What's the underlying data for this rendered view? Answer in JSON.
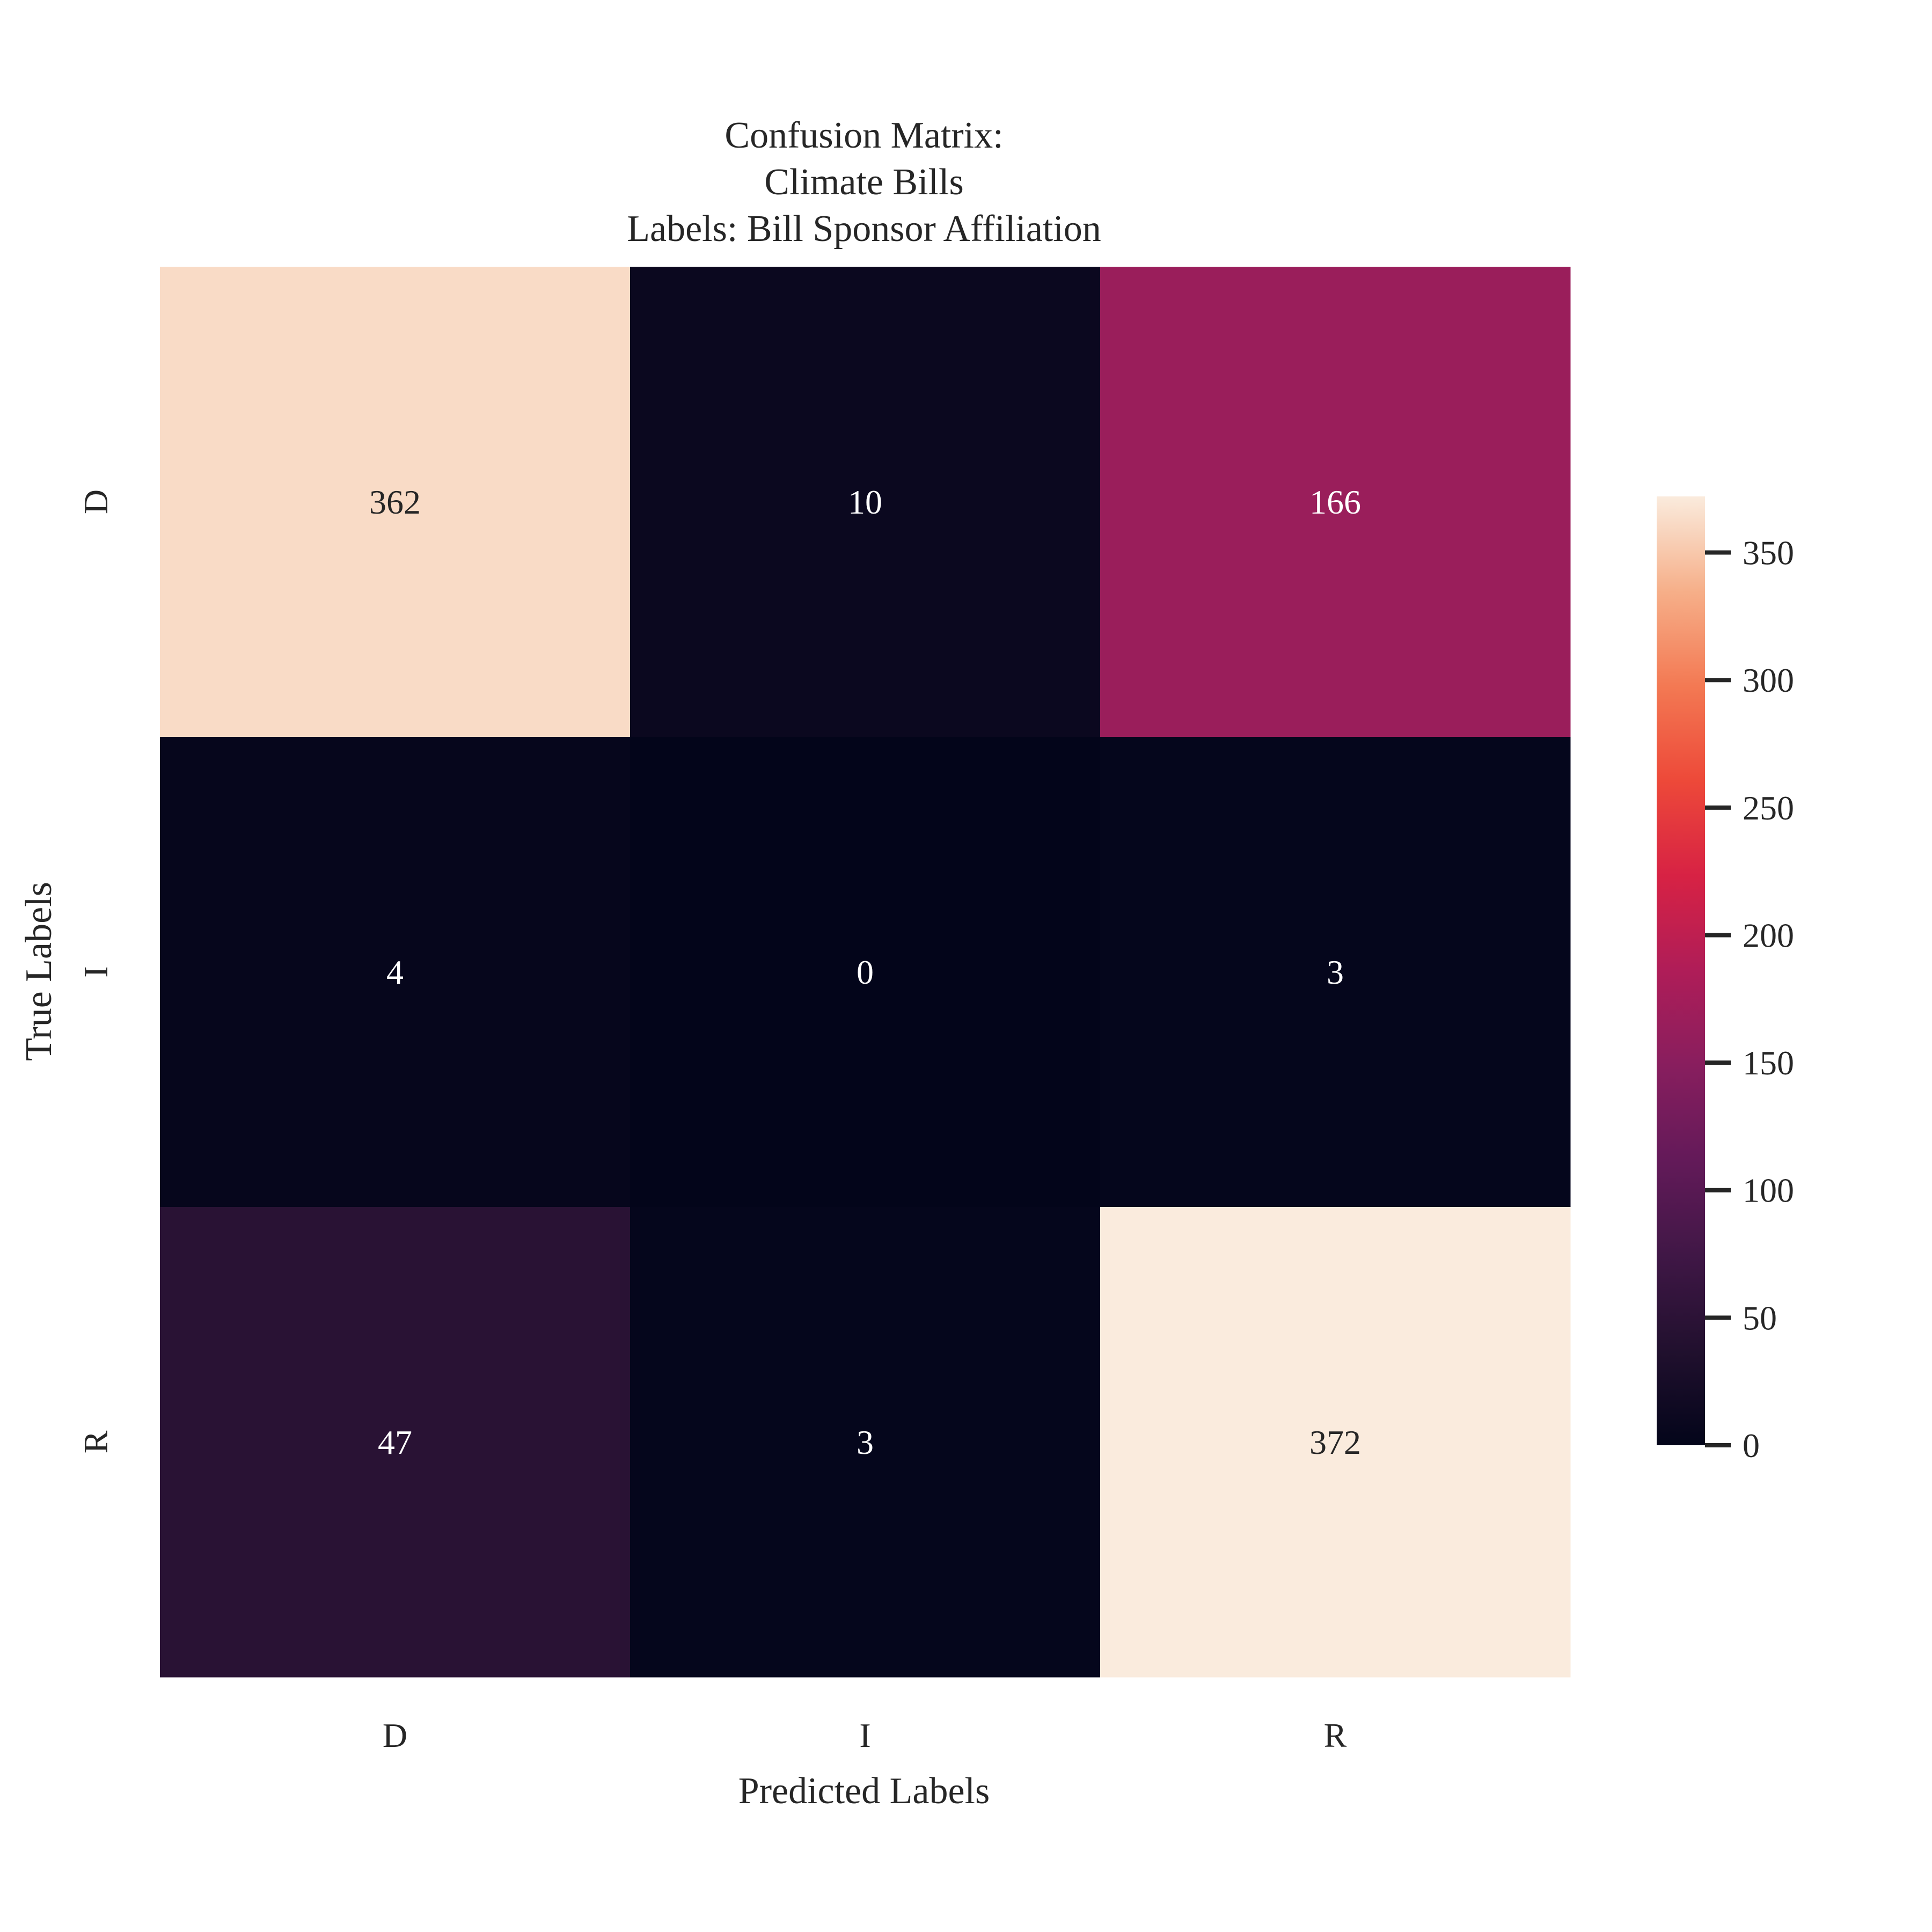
{
  "chart_data": {
    "type": "heatmap",
    "title_lines": [
      "Confusion Matrix:",
      "Climate Bills",
      "Labels: Bill Sponsor Affiliation"
    ],
    "xlabel": "Predicted Labels",
    "ylabel": "True Labels",
    "x_categories": [
      "D",
      "I",
      "R"
    ],
    "y_categories": [
      "D",
      "I",
      "R"
    ],
    "values": [
      [
        362,
        10,
        166
      ],
      [
        4,
        0,
        3
      ],
      [
        47,
        3,
        372
      ]
    ],
    "colorbar": {
      "colormap": "rocket",
      "min": 0,
      "max": 372,
      "ticks": [
        0,
        50,
        100,
        150,
        200,
        250,
        300,
        350
      ]
    },
    "grid": false,
    "legend": "colorbar-right"
  }
}
